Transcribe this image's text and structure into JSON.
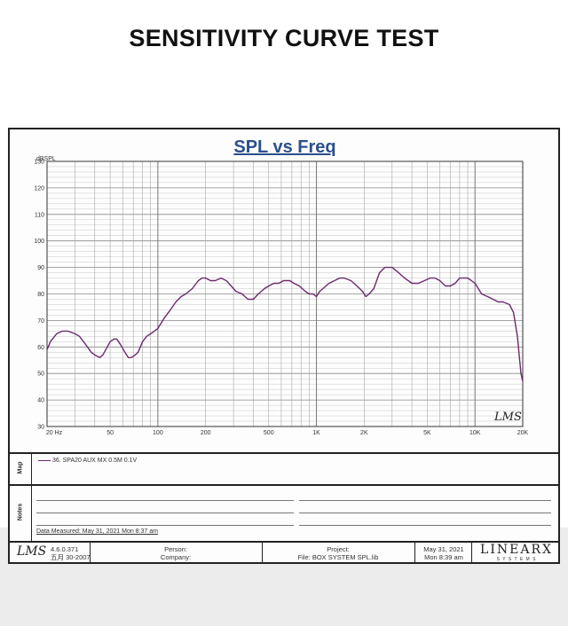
{
  "page_title": "SENSITIVITY CURVE TEST",
  "colors": {
    "curve": "#6b2a6e",
    "grid": "#9a9a9a",
    "frame": "#222222",
    "title": "#2a4f8a"
  },
  "chart_data": {
    "type": "line",
    "title": "SPL vs Freq",
    "ylabel": "dBSPL",
    "xlabel": "",
    "x_scale": "log",
    "xlim": [
      20,
      20000
    ],
    "ylim": [
      30,
      130
    ],
    "x_ticks": [
      20,
      50,
      100,
      200,
      500,
      1000,
      2000,
      5000,
      10000,
      20000
    ],
    "x_tick_labels": [
      "20  Hz",
      "50",
      "100",
      "200",
      "500",
      "1K",
      "2K",
      "5K",
      "10K",
      "20K"
    ],
    "y_ticks": [
      30,
      40,
      50,
      60,
      70,
      80,
      90,
      100,
      110,
      120,
      130
    ],
    "grid": true,
    "series": [
      {
        "name": "36. SPA20 AUX  MX 0.5M 0.1V",
        "x": [
          20,
          21,
          23,
          25,
          27,
          30,
          32,
          35,
          38,
          40,
          43,
          45,
          48,
          50,
          53,
          55,
          58,
          62,
          65,
          68,
          72,
          75,
          80,
          85,
          90,
          95,
          100,
          110,
          120,
          130,
          140,
          150,
          165,
          180,
          190,
          200,
          215,
          230,
          250,
          270,
          290,
          310,
          340,
          370,
          400,
          430,
          470,
          500,
          540,
          580,
          620,
          680,
          720,
          780,
          850,
          900,
          950,
          1000,
          1050,
          1100,
          1200,
          1300,
          1400,
          1500,
          1650,
          1800,
          1950,
          2000,
          2050,
          2150,
          2300,
          2500,
          2700,
          3000,
          3300,
          3600,
          4000,
          4400,
          4800,
          5200,
          5600,
          6000,
          6500,
          7000,
          7500,
          8000,
          8500,
          9000,
          9500,
          10000,
          10500,
          11000,
          12000,
          13000,
          14000,
          15000,
          16500,
          17500,
          18500,
          19500,
          20000
        ],
        "y": [
          59,
          62,
          65,
          66,
          66,
          65,
          64,
          61,
          58,
          57,
          56,
          57,
          60,
          62,
          63,
          63,
          61,
          58,
          56,
          56,
          57,
          58,
          62,
          64,
          65,
          66,
          67,
          71,
          74,
          77,
          79,
          80,
          82,
          85,
          86,
          86,
          85,
          85,
          86,
          85,
          83,
          81,
          80,
          78,
          78,
          80,
          82,
          83,
          84,
          84,
          85,
          85,
          84,
          83,
          81,
          80,
          80,
          79,
          81,
          82,
          84,
          85,
          86,
          86,
          85,
          83,
          81,
          80,
          79,
          80,
          82,
          88,
          90,
          90,
          88,
          86,
          84,
          84,
          85,
          86,
          86,
          85,
          83,
          83,
          84,
          86,
          86,
          86,
          85,
          84,
          82,
          80,
          79,
          78,
          77,
          77,
          76,
          73,
          64,
          50,
          47
        ]
      }
    ]
  },
  "logo_text": "LMS",
  "map_label": "Map",
  "notes_label": "Notes",
  "legend_entry": "36. SPA20 AUX  MX 0.5M 0.1V",
  "data_measured": "Data Measured: May 31, 2021  Mon  8:37 am",
  "footer": {
    "version": "4.6.0.371",
    "version_date": "五月 30-2007",
    "person_label": "Person:",
    "company_label": "Company:",
    "project_label": "Project:",
    "file_label": "File: BOX SYSTEM SPL.lib",
    "date": "May 31, 2021",
    "time": "Mon  8:39 am",
    "brand": "LINEARX",
    "brand_sub": "S Y S T E M S"
  }
}
